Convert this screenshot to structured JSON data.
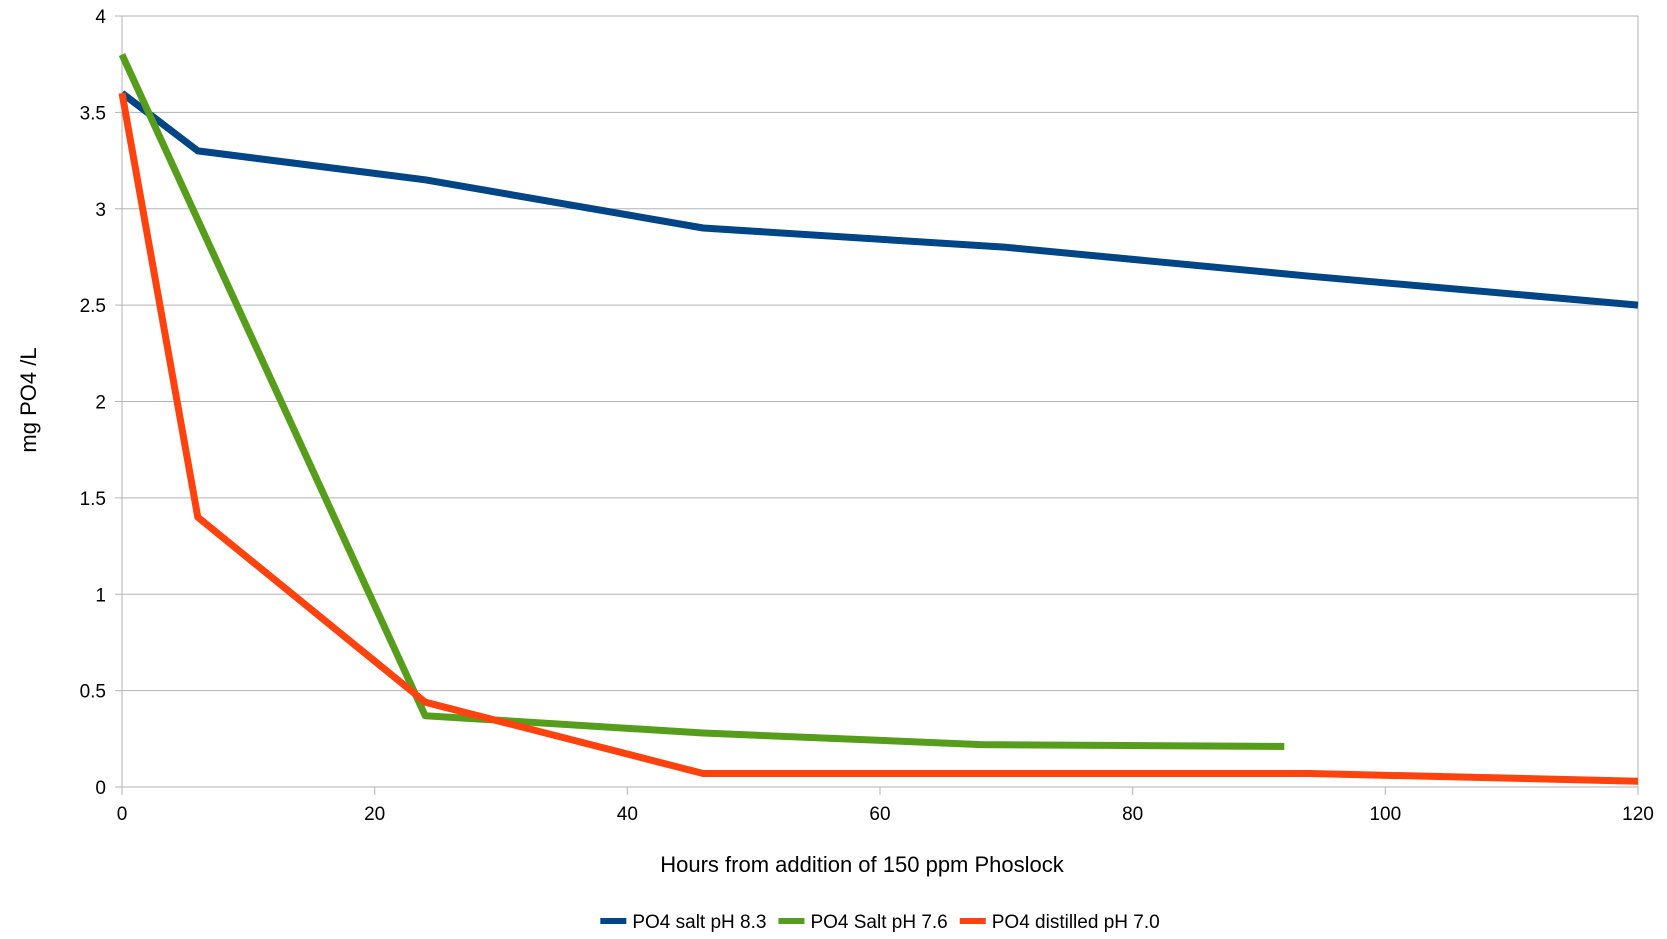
{
  "chart_data": {
    "type": "line",
    "title": "",
    "xlabel": "Hours from addition of 150 ppm Phoslock",
    "ylabel": "mg PO4 /L",
    "xlim": [
      0,
      120
    ],
    "ylim": [
      0,
      4
    ],
    "x_ticks": [
      0,
      20,
      40,
      60,
      80,
      100,
      120
    ],
    "x_tick_labels": [
      "0",
      "20",
      "40",
      "60",
      "80",
      "100",
      "120"
    ],
    "y_ticks": [
      0,
      0.5,
      1,
      1.5,
      2,
      2.5,
      3,
      3.5,
      4
    ],
    "y_tick_labels": [
      "0",
      "0.5",
      "1",
      "1.5",
      "2",
      "2.5",
      "3",
      "3.5",
      "4"
    ],
    "grid": "horizontal",
    "legend_position": "bottom",
    "series": [
      {
        "name": "PO4 salt pH 8.3",
        "color": "#004586",
        "points": [
          [
            0,
            3.6
          ],
          [
            6,
            3.3
          ],
          [
            24,
            3.15
          ],
          [
            46,
            2.9
          ],
          [
            70,
            2.8
          ],
          [
            94,
            2.65
          ],
          [
            120,
            2.5
          ]
        ]
      },
      {
        "name": "PO4 Salt pH 7.6",
        "color": "#579d1c",
        "points": [
          [
            0,
            3.8
          ],
          [
            24,
            0.37
          ],
          [
            46,
            0.28
          ],
          [
            68,
            0.22
          ],
          [
            92,
            0.21
          ]
        ]
      },
      {
        "name": "PO4 distilled pH 7.0",
        "color": "#ff420e",
        "points": [
          [
            0,
            3.6
          ],
          [
            6,
            1.4
          ],
          [
            24,
            0.44
          ],
          [
            46,
            0.07
          ],
          [
            70,
            0.07
          ],
          [
            94,
            0.07
          ],
          [
            120,
            0.03
          ]
        ]
      }
    ]
  }
}
